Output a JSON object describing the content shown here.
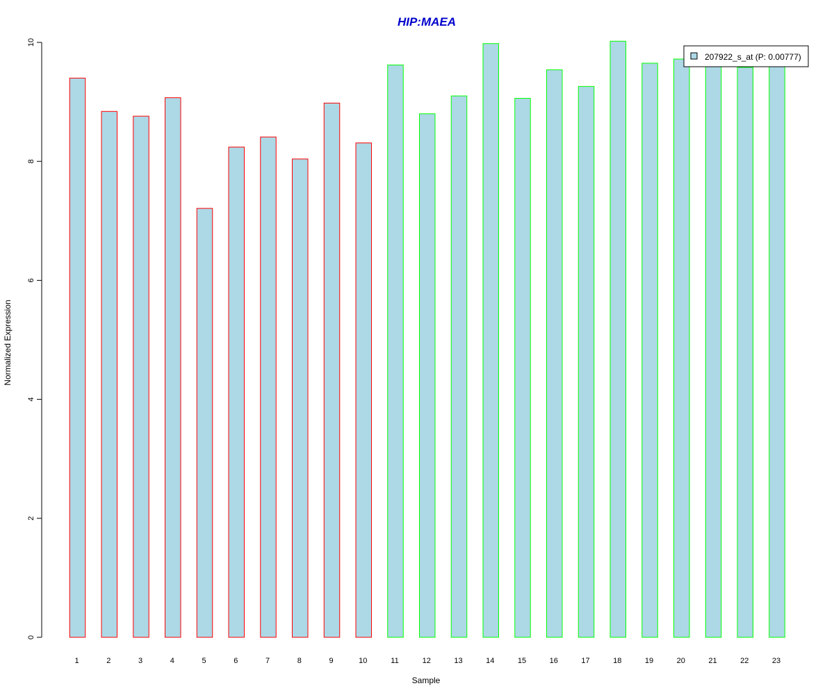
{
  "chart_data": {
    "type": "bar",
    "title": "HIP:MAEA",
    "xlabel": "Sample",
    "ylabel": "Normalized Expression",
    "categories": [
      "1",
      "2",
      "3",
      "4",
      "5",
      "6",
      "7",
      "8",
      "9",
      "10",
      "11",
      "12",
      "13",
      "14",
      "15",
      "16",
      "17",
      "18",
      "19",
      "20",
      "21",
      "22",
      "23"
    ],
    "series": [
      {
        "name": "207922_s_at (P: 0.00777)",
        "values": [
          9.4,
          8.84,
          8.76,
          9.07,
          7.21,
          8.24,
          8.41,
          8.04,
          8.98,
          8.31,
          9.62,
          8.8,
          9.1,
          9.98,
          9.06,
          9.54,
          9.26,
          10.02,
          9.65,
          9.72,
          9.6,
          9.58,
          9.61
        ]
      }
    ],
    "group_membership": [
      "red",
      "red",
      "red",
      "red",
      "red",
      "red",
      "red",
      "red",
      "red",
      "red",
      "green",
      "green",
      "green",
      "green",
      "green",
      "green",
      "green",
      "green",
      "green",
      "green",
      "green",
      "green",
      "green"
    ],
    "yticks": [
      0,
      2,
      4,
      6,
      8,
      10
    ],
    "ylim": [
      0,
      10
    ],
    "grid": false,
    "legend_position": "top-right",
    "colors": {
      "bar_fill": "#add8e6",
      "red_border": "#ff0000",
      "green_border": "#00ff00",
      "title": "#0000cd"
    }
  }
}
